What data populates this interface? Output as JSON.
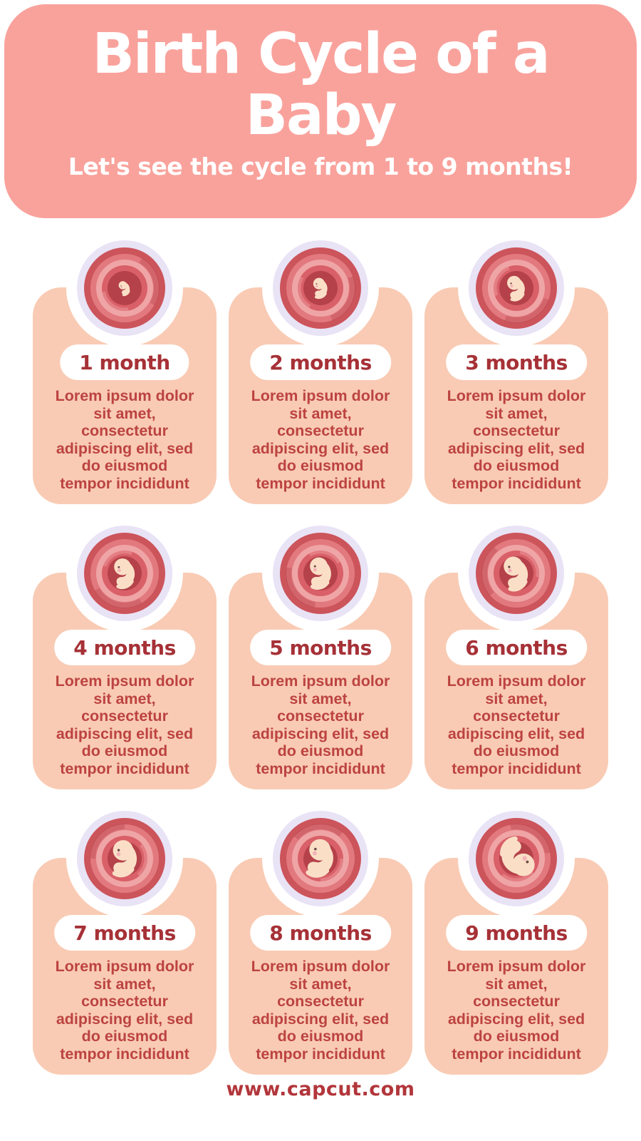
{
  "header": {
    "title": "Birth Cycle of a Baby",
    "subtitle": "Let's see the cycle from 1 to 9 months!"
  },
  "stages": [
    {
      "label": "1 month",
      "description_lines": [
        "Lorem ipsum dolor",
        "sit amet,",
        "consectetur",
        "adipiscing elit, sed",
        "do eiusmod",
        "tempor incididunt"
      ]
    },
    {
      "label": "2 months",
      "description_lines": [
        "Lorem ipsum dolor",
        "sit amet,",
        "consectetur",
        "adipiscing elit, sed",
        "do eiusmod",
        "tempor incididunt"
      ]
    },
    {
      "label": "3 months",
      "description_lines": [
        "Lorem ipsum dolor",
        "sit amet,",
        "consectetur",
        "adipiscing elit, sed",
        "do eiusmod",
        "tempor incididunt"
      ]
    },
    {
      "label": "4 months",
      "description_lines": [
        "Lorem ipsum dolor",
        "sit amet,",
        "consectetur",
        "adipiscing elit, sed",
        "do eiusmod",
        "tempor incididunt"
      ]
    },
    {
      "label": "5 months",
      "description_lines": [
        "Lorem ipsum dolor",
        "sit amet,",
        "consectetur",
        "adipiscing elit, sed",
        "do eiusmod",
        "tempor incididunt"
      ]
    },
    {
      "label": "6 months",
      "description_lines": [
        "Lorem ipsum dolor",
        "sit amet,",
        "consectetur",
        "adipiscing elit, sed",
        "do eiusmod",
        "tempor incididunt"
      ]
    },
    {
      "label": "7 months",
      "description_lines": [
        "Lorem ipsum dolor",
        "sit amet,",
        "consectetur",
        "adipiscing elit, sed",
        "do eiusmod",
        "tempor incididunt"
      ]
    },
    {
      "label": "8 months",
      "description_lines": [
        "Lorem ipsum dolor",
        "sit amet,",
        "consectetur",
        "adipiscing elit, sed",
        "do eiusmod",
        "tempor incididunt"
      ]
    },
    {
      "label": "9 months",
      "description_lines": [
        "Lorem ipsum dolor",
        "sit amet,",
        "consectetur",
        "adipiscing elit, sed",
        "do eiusmod",
        "tempor incididunt"
      ]
    }
  ],
  "footer": {
    "website": "www.capcut.com"
  },
  "colors": {
    "header_bg": "#F9A29C",
    "header_text": "#FFFFFF",
    "card_bg": "#F9CBB4",
    "pill_bg": "#FFFFFF",
    "label_text": "#A63137",
    "body_text": "#BC4340",
    "footer_text": "#B2363B",
    "womb_ring": "#E9E3F6",
    "womb_outer": "#CC545B",
    "womb_mid": "#E2797E",
    "womb_light": "#EFA5A6",
    "womb_deep": "#D96068",
    "womb_dark": "#B5414A",
    "fetus_skin": "#FADFC6",
    "fetus_cheek": "#F2A9B5",
    "fetus_eye": "#6E4A47"
  }
}
